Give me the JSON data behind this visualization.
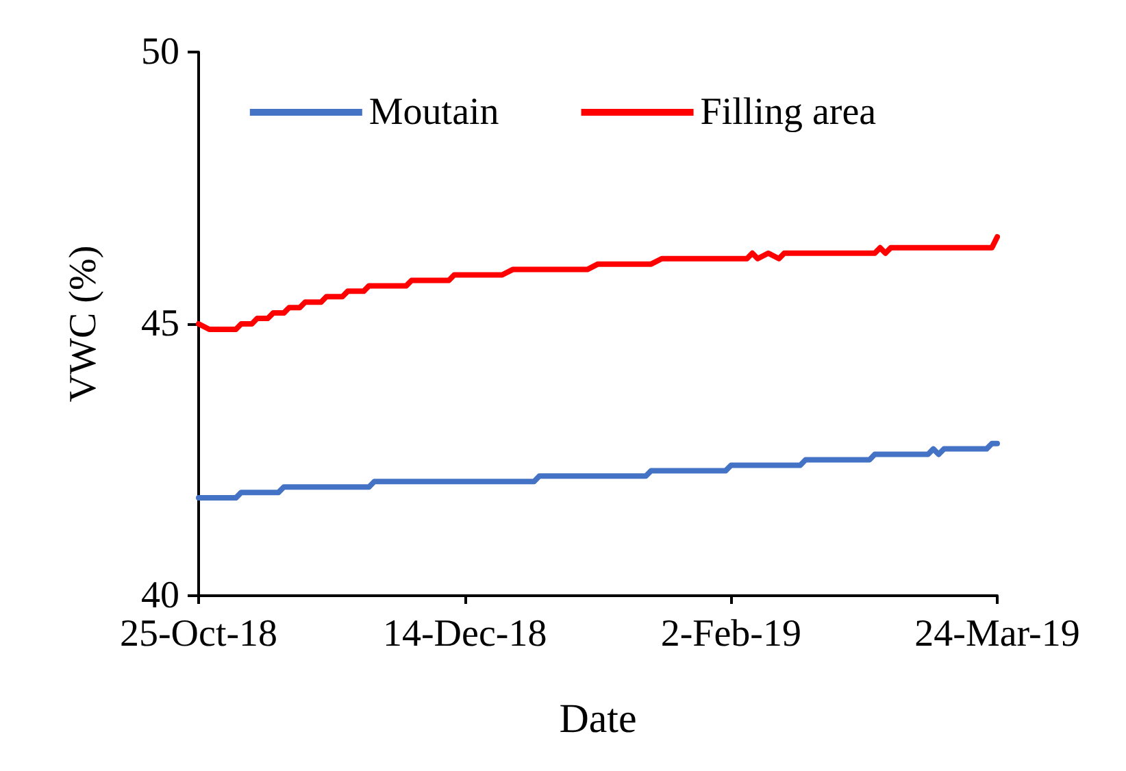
{
  "chart_data": {
    "type": "line",
    "xlabel": "Date",
    "ylabel": "VWC (%)",
    "xlim": [
      "2018-10-25",
      "2019-03-24"
    ],
    "xticks": [
      {
        "value": "2018-10-25",
        "label": "25-Oct-18"
      },
      {
        "value": "2018-12-14",
        "label": "14-Dec-18"
      },
      {
        "value": "2019-02-02",
        "label": "2-Feb-19"
      },
      {
        "value": "2019-03-24",
        "label": "24-Mar-19"
      }
    ],
    "ylim": [
      40,
      50
    ],
    "yticks": [
      40,
      45,
      50
    ],
    "grid": false,
    "legend": "top",
    "marker": "none",
    "line_style": "solid",
    "series": [
      {
        "name": "Moutain",
        "color": "#4472c4",
        "x": [
          "2018-10-25",
          "2018-11-01",
          "2018-11-02",
          "2018-11-09",
          "2018-11-10",
          "2018-11-26",
          "2018-11-27",
          "2018-12-27",
          "2018-12-28",
          "2019-01-17",
          "2019-01-18",
          "2019-02-01",
          "2019-02-02",
          "2019-02-15",
          "2019-02-16",
          "2019-02-28",
          "2019-03-01",
          "2019-03-11",
          "2019-03-12",
          "2019-03-13",
          "2019-03-14",
          "2019-03-22",
          "2019-03-23",
          "2019-03-24"
        ],
        "values": [
          41.8,
          41.8,
          41.9,
          41.9,
          42.0,
          42.0,
          42.1,
          42.1,
          42.2,
          42.2,
          42.3,
          42.3,
          42.4,
          42.4,
          42.5,
          42.5,
          42.6,
          42.6,
          42.7,
          42.6,
          42.7,
          42.7,
          42.8,
          42.8
        ]
      },
      {
        "name": "Filling area",
        "color": "#ff0000",
        "x": [
          "2018-10-25",
          "2018-10-27",
          "2018-11-01",
          "2018-11-02",
          "2018-11-04",
          "2018-11-05",
          "2018-11-07",
          "2018-11-08",
          "2018-11-10",
          "2018-11-11",
          "2018-11-13",
          "2018-11-14",
          "2018-11-17",
          "2018-11-18",
          "2018-11-21",
          "2018-11-22",
          "2018-11-25",
          "2018-11-26",
          "2018-12-03",
          "2018-12-04",
          "2018-12-11",
          "2018-12-12",
          "2018-12-21",
          "2018-12-23",
          "2019-01-06",
          "2019-01-08",
          "2019-01-18",
          "2019-01-20",
          "2019-02-05",
          "2019-02-06",
          "2019-02-07",
          "2019-02-09",
          "2019-02-11",
          "2019-02-12",
          "2019-03-01",
          "2019-03-02",
          "2019-03-03",
          "2019-03-04",
          "2019-03-23",
          "2019-03-24"
        ],
        "values": [
          45.0,
          44.9,
          44.9,
          45.0,
          45.0,
          45.1,
          45.1,
          45.2,
          45.2,
          45.3,
          45.3,
          45.4,
          45.4,
          45.5,
          45.5,
          45.6,
          45.6,
          45.7,
          45.7,
          45.8,
          45.8,
          45.9,
          45.9,
          46.0,
          46.0,
          46.1,
          46.1,
          46.2,
          46.2,
          46.3,
          46.2,
          46.3,
          46.2,
          46.3,
          46.3,
          46.4,
          46.3,
          46.4,
          46.4,
          46.6
        ]
      }
    ]
  }
}
